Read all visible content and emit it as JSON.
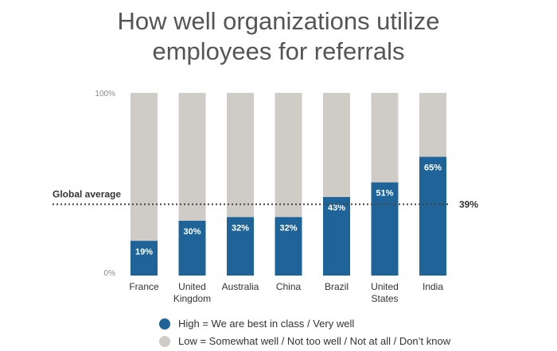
{
  "title_line1": "How well organizations utilize",
  "title_line2": "employees for referrals",
  "colors": {
    "high": "#1f6498",
    "low": "#cfccc8",
    "avg_line": "#444444",
    "text": "#333333",
    "axis_text": "#888888"
  },
  "chart_data": {
    "type": "bar",
    "stacked": true,
    "title": "How well organizations utilize employees for referrals",
    "categories": [
      [
        "France"
      ],
      [
        "United",
        "Kingdom"
      ],
      [
        "Australia"
      ],
      [
        "China"
      ],
      [
        "Brazil"
      ],
      [
        "United",
        "States"
      ],
      [
        "India"
      ]
    ],
    "series": [
      {
        "name": "High = We are best in class / Very well",
        "values": [
          19,
          30,
          32,
          32,
          43,
          51,
          65
        ],
        "labels": [
          "19%",
          "30%",
          "32%",
          "32%",
          "43%",
          "51%",
          "65%"
        ]
      },
      {
        "name": "Low = Somewhat well / Not too well / Not at all / Don’t know",
        "values": [
          81,
          70,
          68,
          68,
          57,
          49,
          35
        ]
      }
    ],
    "ylim": [
      0,
      100
    ],
    "yticks": [
      "0%",
      "100%"
    ],
    "reference_line": {
      "label": "Global average",
      "value": 39,
      "value_label": "39%"
    },
    "legend_position": "bottom",
    "grid": false
  }
}
